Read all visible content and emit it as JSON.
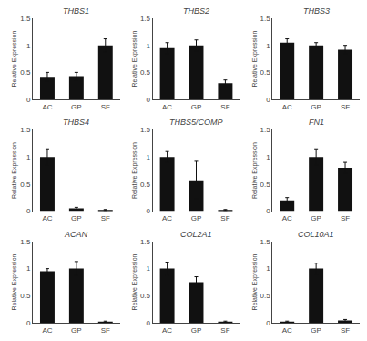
{
  "chart_data": [
    {
      "type": "bar",
      "title": "THBS1",
      "categories": [
        "AC",
        "GP",
        "SF"
      ],
      "values": [
        0.42,
        0.43,
        1.0
      ],
      "errors": [
        0.08,
        0.07,
        0.12
      ],
      "color": "#111111",
      "ylabel": "Relative Expression",
      "ylim": [
        0,
        1.5
      ],
      "yticks": [
        0,
        0.5,
        1,
        1.5
      ],
      "grid": false
    },
    {
      "type": "bar",
      "title": "THBS2",
      "categories": [
        "AC",
        "GP",
        "SF"
      ],
      "values": [
        0.95,
        1.0,
        0.3
      ],
      "errors": [
        0.1,
        0.1,
        0.06
      ],
      "color": "#111111",
      "ylabel": "Relative Expression",
      "ylim": [
        0,
        1.5
      ],
      "yticks": [
        0,
        0.5,
        1,
        1.5
      ],
      "grid": false
    },
    {
      "type": "bar",
      "title": "THBS3",
      "categories": [
        "AC",
        "GP",
        "SF"
      ],
      "values": [
        1.05,
        1.0,
        0.92
      ],
      "errors": [
        0.07,
        0.05,
        0.08
      ],
      "color": "#111111",
      "ylabel": "Relative Expression",
      "ylim": [
        0,
        1.5
      ],
      "yticks": [
        0,
        0.5,
        1,
        1.5
      ],
      "grid": false
    },
    {
      "type": "bar",
      "title": "THBS4",
      "categories": [
        "AC",
        "GP",
        "SF"
      ],
      "values": [
        1.0,
        0.05,
        0.02
      ],
      "errors": [
        0.15,
        0.02,
        0.01
      ],
      "color": "#111111",
      "ylabel": "Relative Expression",
      "ylim": [
        0,
        1.5
      ],
      "yticks": [
        0,
        0.5,
        1,
        1.5
      ],
      "grid": false
    },
    {
      "type": "bar",
      "title": "THBS5/COMP",
      "categories": [
        "AC",
        "GP",
        "SF"
      ],
      "values": [
        1.0,
        0.57,
        0.02
      ],
      "errors": [
        0.1,
        0.35,
        0.01
      ],
      "color": "#111111",
      "ylabel": "Relative Expression",
      "ylim": [
        0,
        1.5
      ],
      "yticks": [
        0,
        0.5,
        1,
        1.5
      ],
      "grid": false
    },
    {
      "type": "bar",
      "title": "FN1",
      "categories": [
        "AC",
        "GP",
        "SF"
      ],
      "values": [
        0.2,
        1.0,
        0.8
      ],
      "errors": [
        0.05,
        0.15,
        0.1
      ],
      "color": "#111111",
      "ylabel": "Relative Expression",
      "ylim": [
        0,
        1.5
      ],
      "yticks": [
        0,
        0.5,
        1,
        1.5
      ],
      "grid": false
    },
    {
      "type": "bar",
      "title": "ACAN",
      "categories": [
        "AC",
        "GP",
        "SF"
      ],
      "values": [
        0.95,
        1.0,
        0.02
      ],
      "errors": [
        0.05,
        0.13,
        0.01
      ],
      "color": "#111111",
      "ylabel": "Relative Expression",
      "ylim": [
        0,
        1.5
      ],
      "yticks": [
        0,
        0.5,
        1,
        1.5
      ],
      "grid": false
    },
    {
      "type": "bar",
      "title": "COL2A1",
      "categories": [
        "AC",
        "GP",
        "SF"
      ],
      "values": [
        1.0,
        0.75,
        0.02
      ],
      "errors": [
        0.12,
        0.1,
        0.01
      ],
      "color": "#111111",
      "ylabel": "Relative Expression",
      "ylim": [
        0,
        1.5
      ],
      "yticks": [
        0,
        0.5,
        1,
        1.5
      ],
      "grid": false
    },
    {
      "type": "bar",
      "title": "COL10A1",
      "categories": [
        "AC",
        "GP",
        "SF"
      ],
      "values": [
        0.02,
        1.0,
        0.04
      ],
      "errors": [
        0.01,
        0.1,
        0.02
      ],
      "color": "#111111",
      "ylabel": "Relative Expression",
      "ylim": [
        0,
        1.5
      ],
      "yticks": [
        0,
        0.5,
        1,
        1.5
      ],
      "grid": false
    }
  ]
}
